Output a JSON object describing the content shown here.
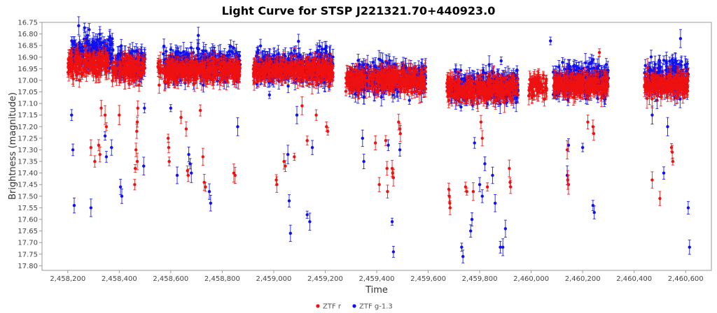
{
  "chart_data": {
    "type": "scatter",
    "title": "Light Curve for STSP J221321.70+440923.0",
    "xlabel": "Time",
    "ylabel": "Brightness (magnitude)",
    "xlim": [
      2458100,
      2460700
    ],
    "ylim": [
      16.75,
      17.82
    ],
    "y_inverted": true,
    "grid": false,
    "legend_position": "bottom-center",
    "x_ticks": [
      2458200,
      2458400,
      2458600,
      2458800,
      2459000,
      2459200,
      2459400,
      2459600,
      2459800,
      2460000,
      2460200,
      2460400,
      2460600
    ],
    "x_tick_labels": [
      "2,458,200",
      "2,458,400",
      "2,458,600",
      "2,458,800",
      "2,459,000",
      "2,459,200",
      "2,459,400",
      "2,459,600",
      "2,459,800",
      "2,460,000",
      "2,460,200",
      "2,460,400",
      "2,460,600"
    ],
    "y_ticks": [
      16.75,
      16.8,
      16.85,
      16.9,
      16.95,
      17.0,
      17.05,
      17.1,
      17.15,
      17.2,
      17.25,
      17.3,
      17.35,
      17.4,
      17.45,
      17.5,
      17.55,
      17.6,
      17.65,
      17.7,
      17.75,
      17.8
    ],
    "y_tick_labels": [
      "16.75",
      "16.80",
      "16.85",
      "16.90",
      "16.95",
      "17.00",
      "17.05",
      "17.10",
      "17.15",
      "17.20",
      "17.25",
      "17.30",
      "17.35",
      "17.40",
      "17.45",
      "17.50",
      "17.55",
      "17.60",
      "17.65",
      "17.70",
      "17.75",
      "17.80"
    ],
    "series": [
      {
        "name": "ZTF r",
        "color": "#ee1111",
        "seasons": [
          {
            "start": 2458200,
            "end": 2458360,
            "center": 16.93,
            "spread": 0.045
          },
          {
            "start": 2458370,
            "end": 2458500,
            "center": 16.95,
            "spread": 0.045
          },
          {
            "start": 2458550,
            "end": 2458870,
            "center": 16.96,
            "spread": 0.04
          },
          {
            "start": 2458920,
            "end": 2459230,
            "center": 16.96,
            "spread": 0.04
          },
          {
            "start": 2459280,
            "end": 2459590,
            "center": 17.0,
            "spread": 0.04
          },
          {
            "start": 2459670,
            "end": 2459950,
            "center": 17.04,
            "spread": 0.04
          },
          {
            "start": 2459990,
            "end": 2460060,
            "center": 17.03,
            "spread": 0.04
          },
          {
            "start": 2460085,
            "end": 2460300,
            "center": 17.02,
            "spread": 0.035
          },
          {
            "start": 2460440,
            "end": 2460610,
            "center": 17.02,
            "spread": 0.04
          }
        ],
        "outliers": [
          [
            2458290,
            17.29
          ],
          [
            2458305,
            17.35
          ],
          [
            2458320,
            17.28
          ],
          [
            2458325,
            17.32
          ],
          [
            2458330,
            17.12
          ],
          [
            2458345,
            17.15
          ],
          [
            2458350,
            17.2
          ],
          [
            2458400,
            17.15
          ],
          [
            2458460,
            17.45
          ],
          [
            2458462,
            17.38
          ],
          [
            2458465,
            17.3
          ],
          [
            2458468,
            17.22
          ],
          [
            2458470,
            17.18
          ],
          [
            2458472,
            17.12
          ],
          [
            2458470,
            17.35
          ],
          [
            2458590,
            17.25
          ],
          [
            2458592,
            17.29
          ],
          [
            2458594,
            17.35
          ],
          [
            2458640,
            17.16
          ],
          [
            2458660,
            17.21
          ],
          [
            2458665,
            17.39
          ],
          [
            2458668,
            17.41
          ],
          [
            2458715,
            17.13
          ],
          [
            2458725,
            17.33
          ],
          [
            2458730,
            17.44
          ],
          [
            2458735,
            17.46
          ],
          [
            2458845,
            17.4
          ],
          [
            2458850,
            17.41
          ],
          [
            2459010,
            17.43
          ],
          [
            2459012,
            17.45
          ],
          [
            2459040,
            17.35
          ],
          [
            2459045,
            17.37
          ],
          [
            2459080,
            17.33
          ],
          [
            2459110,
            17.11
          ],
          [
            2459130,
            17.26
          ],
          [
            2459165,
            17.15
          ],
          [
            2459205,
            17.2
          ],
          [
            2459210,
            17.22
          ],
          [
            2459395,
            17.27
          ],
          [
            2459410,
            17.45
          ],
          [
            2459435,
            17.26
          ],
          [
            2459440,
            17.38
          ],
          [
            2459442,
            17.48
          ],
          [
            2459460,
            17.38
          ],
          [
            2459462,
            17.4
          ],
          [
            2459465,
            17.42
          ],
          [
            2459485,
            17.18
          ],
          [
            2459490,
            17.21
          ],
          [
            2459492,
            17.23
          ],
          [
            2459680,
            17.47
          ],
          [
            2459682,
            17.5
          ],
          [
            2459684,
            17.53
          ],
          [
            2459685,
            17.55
          ],
          [
            2459745,
            17.46
          ],
          [
            2459750,
            17.48
          ],
          [
            2459775,
            17.48
          ],
          [
            2459805,
            17.18
          ],
          [
            2459810,
            17.25
          ],
          [
            2459830,
            17.46
          ],
          [
            2459915,
            17.38
          ],
          [
            2459918,
            17.44
          ],
          [
            2459920,
            17.46
          ],
          [
            2460140,
            17.3
          ],
          [
            2460142,
            17.43
          ],
          [
            2460145,
            17.45
          ],
          [
            2460220,
            17.18
          ],
          [
            2460240,
            17.2
          ],
          [
            2460243,
            17.23
          ],
          [
            2460265,
            16.88
          ],
          [
            2460470,
            17.43
          ],
          [
            2460500,
            17.51
          ],
          [
            2460545,
            17.29
          ],
          [
            2460548,
            17.31
          ],
          [
            2460550,
            17.35
          ]
        ]
      },
      {
        "name": "ZTF g-1.3",
        "color": "#1111ee",
        "seasons": [
          {
            "start": 2458215,
            "end": 2458375,
            "center": 16.88,
            "spread": 0.06
          },
          {
            "start": 2458385,
            "end": 2458500,
            "center": 16.93,
            "spread": 0.06
          },
          {
            "start": 2458570,
            "end": 2458870,
            "center": 16.93,
            "spread": 0.06
          },
          {
            "start": 2458930,
            "end": 2459230,
            "center": 16.94,
            "spread": 0.06
          },
          {
            "start": 2459290,
            "end": 2459590,
            "center": 16.99,
            "spread": 0.06
          },
          {
            "start": 2459690,
            "end": 2459950,
            "center": 17.03,
            "spread": 0.06
          },
          {
            "start": 2460085,
            "end": 2460300,
            "center": 17.0,
            "spread": 0.06
          },
          {
            "start": 2460440,
            "end": 2460610,
            "center": 16.99,
            "spread": 0.06
          }
        ],
        "outliers": [
          [
            2458215,
            17.15
          ],
          [
            2458220,
            17.3
          ],
          [
            2458225,
            17.54
          ],
          [
            2458290,
            17.55
          ],
          [
            2458345,
            17.24
          ],
          [
            2458350,
            17.33
          ],
          [
            2458370,
            17.29
          ],
          [
            2458405,
            17.46
          ],
          [
            2458410,
            17.5
          ],
          [
            2458495,
            17.37
          ],
          [
            2458498,
            17.12
          ],
          [
            2458600,
            17.12
          ],
          [
            2458625,
            17.41
          ],
          [
            2458670,
            17.32
          ],
          [
            2458675,
            17.36
          ],
          [
            2458680,
            17.4
          ],
          [
            2458750,
            17.48
          ],
          [
            2458755,
            17.53
          ],
          [
            2458860,
            17.2
          ],
          [
            2459055,
            17.32
          ],
          [
            2459060,
            17.52
          ],
          [
            2459065,
            17.66
          ],
          [
            2459090,
            17.15
          ],
          [
            2459130,
            17.58
          ],
          [
            2459140,
            17.61
          ],
          [
            2459150,
            17.29
          ],
          [
            2459345,
            17.25
          ],
          [
            2459350,
            17.35
          ],
          [
            2459445,
            17.28
          ],
          [
            2459460,
            17.61
          ],
          [
            2459465,
            17.74
          ],
          [
            2459490,
            17.3
          ],
          [
            2459730,
            17.72
          ],
          [
            2459735,
            17.76
          ],
          [
            2459765,
            17.65
          ],
          [
            2459770,
            17.6
          ],
          [
            2459780,
            17.27
          ],
          [
            2459800,
            17.45
          ],
          [
            2459810,
            17.5
          ],
          [
            2459820,
            17.36
          ],
          [
            2459850,
            17.41
          ],
          [
            2459860,
            17.53
          ],
          [
            2459880,
            17.72
          ],
          [
            2459890,
            17.72
          ],
          [
            2459900,
            17.64
          ],
          [
            2460075,
            16.83
          ],
          [
            2460140,
            17.41
          ],
          [
            2460145,
            17.28
          ],
          [
            2460200,
            17.29
          ],
          [
            2460240,
            17.54
          ],
          [
            2460245,
            17.57
          ],
          [
            2460470,
            17.15
          ],
          [
            2460515,
            17.4
          ],
          [
            2460530,
            17.2
          ],
          [
            2460580,
            16.82
          ],
          [
            2460610,
            17.55
          ],
          [
            2460615,
            17.72
          ]
        ]
      }
    ],
    "legend": [
      {
        "label": "ZTF r",
        "color": "#ee1111"
      },
      {
        "label": "ZTF g-1.3",
        "color": "#1111ee"
      }
    ]
  }
}
